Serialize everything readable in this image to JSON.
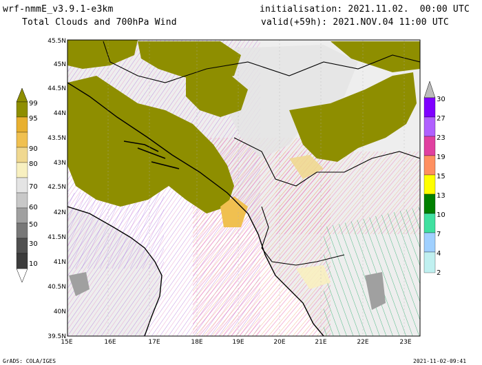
{
  "header": {
    "model": "wrf-nmmE_v3.9.1-e3km",
    "subtitle": "Total Clouds and 700hPa Wind",
    "init": "initialisation: 2021.11.02.  00:00 UTC",
    "valid": "valid(+59h): 2021.NOV.04 11:00 UTC"
  },
  "footer": {
    "credit": "GrADS: COLA/IGES",
    "timestamp": "2021-11-02-09:41"
  },
  "map": {
    "lon_ticks": [
      "15E",
      "16E",
      "17E",
      "18E",
      "19E",
      "20E",
      "21E",
      "22E",
      "23E"
    ],
    "lat_ticks": [
      "45.5N",
      "45N",
      "44.5N",
      "44N",
      "43.5N",
      "43N",
      "42.5N",
      "42N",
      "41.5N",
      "41N",
      "40.5N",
      "40N",
      "39.5N"
    ]
  },
  "cloud_colorbar": {
    "labels": [
      "99",
      "95",
      "90",
      "80",
      "70",
      "60",
      "50",
      "30",
      "10"
    ],
    "colors": [
      "#8e8e00",
      "#e8b030",
      "#f0c050",
      "#f0d890",
      "#f8f0c0",
      "#e4e4e4",
      "#c8c8c8",
      "#a0a0a0",
      "#787878",
      "#505050"
    ]
  },
  "wind_colorbar": {
    "labels": [
      "30",
      "27",
      "23",
      "19",
      "15",
      "13",
      "10",
      "7",
      "4",
      "2"
    ],
    "colors": [
      "#ffffff",
      "#7f00ff",
      "#b060ff",
      "#e040a0",
      "#ff9060",
      "#ffff00",
      "#008000",
      "#40e0a0",
      "#a0d0ff",
      "#c0f0f0"
    ]
  },
  "colors": {
    "olive_cloud": "#8e8e00",
    "land": "#eeeeee",
    "sea": "#ffffff",
    "coast": "#000000"
  }
}
